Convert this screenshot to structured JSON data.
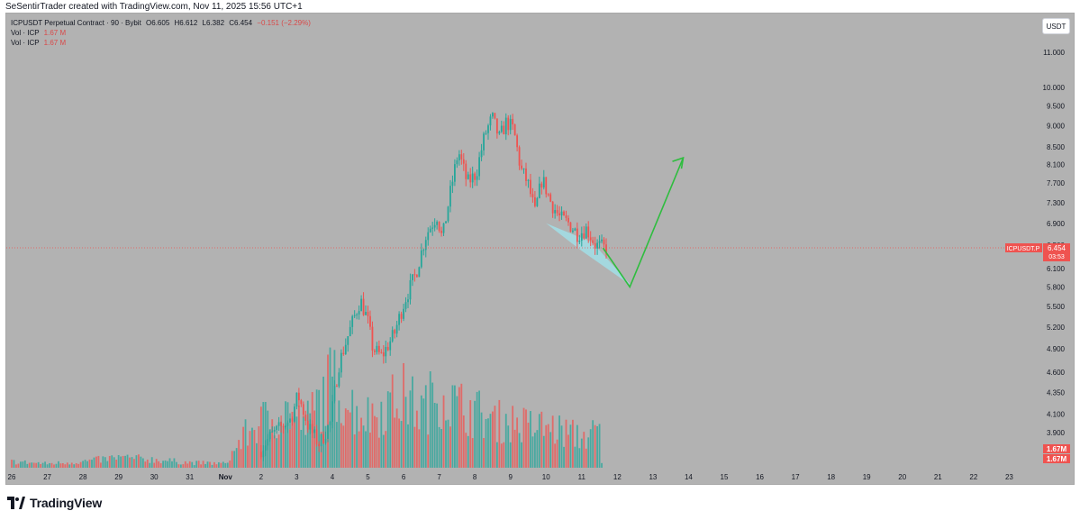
{
  "header": {
    "attribution": "SeSentirTrader created with TradingView.com, Nov 11, 2025 15:56 UTC+1"
  },
  "legend": {
    "symbol_line": "ICPUSDT Perpetual Contract · 90 · Bybit",
    "open": "O6.605",
    "high": "H6.612",
    "low": "L6.382",
    "close": "C6.454",
    "change": "−0.151 (−2.29%)",
    "vol1_label": "Vol · ICP",
    "vol1_value": "1.67 M",
    "vol2_label": "Vol · ICP",
    "vol2_value": "1.67 M"
  },
  "currency_button": "USDT",
  "price_tag": {
    "symbol": "ICPUSDT.P",
    "price": "6.454",
    "countdown": "03:53"
  },
  "volume_tags": [
    "1.67M",
    "1.67M"
  ],
  "logo_text": "TradingView",
  "colors": {
    "up": "#26a69a",
    "down": "#ef5350",
    "price_tag": "#ef5350",
    "projection": "#2fbd3f",
    "channel": "#9fe4ee"
  },
  "chart_data": {
    "type": "candlestick",
    "y_axis_ticks": [
      "11.000",
      "10.000",
      "9.500",
      "9.000",
      "8.500",
      "8.100",
      "7.700",
      "7.300",
      "6.900",
      "6.500",
      "6.100",
      "5.800",
      "5.500",
      "5.200",
      "4.900",
      "4.600",
      "4.350",
      "4.100",
      "3.900"
    ],
    "x_axis_ticks": [
      "26",
      "27",
      "28",
      "29",
      "30",
      "31",
      "Nov",
      "2",
      "3",
      "4",
      "5",
      "6",
      "7",
      "8",
      "9",
      "10",
      "11",
      "12",
      "13",
      "14",
      "15",
      "16",
      "17",
      "18",
      "19",
      "20",
      "21",
      "22",
      "23"
    ],
    "scale": "log",
    "current_price": 6.454,
    "price_path": [
      {
        "day": 1.0,
        "price": 3.7
      },
      {
        "day": 1.3,
        "price": 3.85
      },
      {
        "day": 1.9,
        "price": 4.05
      },
      {
        "day": 2.1,
        "price": 4.32
      },
      {
        "day": 2.4,
        "price": 3.95
      },
      {
        "day": 2.7,
        "price": 3.78
      },
      {
        "day": 3.0,
        "price": 4.0
      },
      {
        "day": 3.25,
        "price": 4.7
      },
      {
        "day": 3.55,
        "price": 5.15
      },
      {
        "day": 3.85,
        "price": 5.6
      },
      {
        "day": 4.05,
        "price": 5.3
      },
      {
        "day": 4.2,
        "price": 4.9
      },
      {
        "day": 4.45,
        "price": 4.8
      },
      {
        "day": 4.8,
        "price": 5.1
      },
      {
        "day": 5.1,
        "price": 5.6
      },
      {
        "day": 5.4,
        "price": 6.0
      },
      {
        "day": 5.7,
        "price": 6.7
      },
      {
        "day": 6.0,
        "price": 7.05
      },
      {
        "day": 6.15,
        "price": 6.6
      },
      {
        "day": 6.4,
        "price": 7.6
      },
      {
        "day": 6.6,
        "price": 8.4
      },
      {
        "day": 6.85,
        "price": 7.7
      },
      {
        "day": 7.1,
        "price": 7.9
      },
      {
        "day": 7.35,
        "price": 8.8
      },
      {
        "day": 7.55,
        "price": 9.2
      },
      {
        "day": 7.75,
        "price": 8.7
      },
      {
        "day": 7.95,
        "price": 9.1
      },
      {
        "day": 8.15,
        "price": 8.9
      },
      {
        "day": 8.35,
        "price": 8.0
      },
      {
        "day": 8.55,
        "price": 7.7
      },
      {
        "day": 8.75,
        "price": 7.1
      },
      {
        "day": 8.95,
        "price": 7.8
      },
      {
        "day": 9.2,
        "price": 7.3
      },
      {
        "day": 9.45,
        "price": 7.0
      },
      {
        "day": 9.7,
        "price": 6.9
      },
      {
        "day": 9.95,
        "price": 6.7
      },
      {
        "day": 10.2,
        "price": 6.8
      },
      {
        "day": 10.45,
        "price": 6.5
      },
      {
        "day": 10.7,
        "price": 6.45
      }
    ],
    "volume_path": [
      {
        "day": 0.0,
        "vol": 0.06
      },
      {
        "day": 1.0,
        "vol": 0.04
      },
      {
        "day": 2.0,
        "vol": 0.06
      },
      {
        "day": 3.0,
        "vol": 0.1
      },
      {
        "day": 4.0,
        "vol": 0.08
      },
      {
        "day": 5.0,
        "vol": 0.05
      },
      {
        "day": 6.0,
        "vol": 0.04
      },
      {
        "day": 6.5,
        "vol": 0.3
      },
      {
        "day": 7.0,
        "vol": 0.45
      },
      {
        "day": 7.8,
        "vol": 0.55
      },
      {
        "day": 8.2,
        "vol": 0.4
      },
      {
        "day": 9.0,
        "vol": 0.85
      },
      {
        "day": 9.5,
        "vol": 0.6
      },
      {
        "day": 10.0,
        "vol": 0.5
      },
      {
        "day": 11.0,
        "vol": 0.7
      },
      {
        "day": 11.5,
        "vol": 0.55
      },
      {
        "day": 12.0,
        "vol": 0.75
      },
      {
        "day": 12.5,
        "vol": 0.6
      },
      {
        "day": 13.0,
        "vol": 0.55
      },
      {
        "day": 13.5,
        "vol": 0.45
      },
      {
        "day": 14.0,
        "vol": 0.45
      },
      {
        "day": 14.5,
        "vol": 0.4
      },
      {
        "day": 15.0,
        "vol": 0.4
      },
      {
        "day": 15.5,
        "vol": 0.35
      },
      {
        "day": 16.0,
        "vol": 0.3
      },
      {
        "day": 16.5,
        "vol": 0.35
      }
    ],
    "projection": [
      {
        "day": 16.6,
        "price": 6.45
      },
      {
        "day": 17.35,
        "price": 5.8
      },
      {
        "day": 18.85,
        "price": 8.25
      }
    ],
    "channel": [
      {
        "day": 15.0,
        "price": 6.9
      },
      {
        "day": 16.3,
        "price": 6.55
      },
      {
        "day": 17.4,
        "price": 5.82
      },
      {
        "day": 16.0,
        "price": 6.4
      }
    ]
  }
}
